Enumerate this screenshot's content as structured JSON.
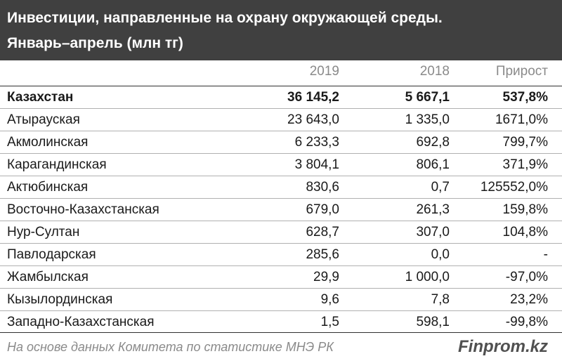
{
  "chart_data": {
    "type": "table",
    "title": "Инвестиции, направленные на охрану окружающей среды.",
    "subtitle": "Январь–апрель (млн тг)",
    "columns": [
      "",
      "2019",
      "2018",
      "Прирост"
    ],
    "rows": [
      {
        "name": "Казахстан",
        "v2019": "36 145,2",
        "v2018": "5 667,1",
        "growth": "537,8%"
      },
      {
        "name": "Атырауская",
        "v2019": "23 643,0",
        "v2018": "1 335,0",
        "growth": "1671,0%"
      },
      {
        "name": "Акмолинская",
        "v2019": "6 233,3",
        "v2018": "692,8",
        "growth": "799,7%"
      },
      {
        "name": "Карагандинская",
        "v2019": "3 804,1",
        "v2018": "806,1",
        "growth": "371,9%"
      },
      {
        "name": "Актюбинская",
        "v2019": "830,6",
        "v2018": "0,7",
        "growth": "125552,0%"
      },
      {
        "name": "Восточно-Казахстанская",
        "v2019": "679,0",
        "v2018": "261,3",
        "growth": "159,8%"
      },
      {
        "name": "Нур-Султан",
        "v2019": "628,7",
        "v2018": "307,0",
        "growth": "104,8%"
      },
      {
        "name": "Павлодарская",
        "v2019": "285,6",
        "v2018": "0,0",
        "growth": "-"
      },
      {
        "name": "Жамбылская",
        "v2019": "29,9",
        "v2018": "1 000,0",
        "growth": "-97,0%"
      },
      {
        "name": "Кызылординская",
        "v2019": "9,6",
        "v2018": "7,8",
        "growth": "23,2%"
      },
      {
        "name": "Западно-Казахстанская",
        "v2019": "1,5",
        "v2018": "598,1",
        "growth": "-99,8%"
      }
    ]
  },
  "footer": {
    "source": "На основе данных  Комитета по статистике МНЭ РК",
    "brand": "Finprom.kz"
  },
  "colors": {
    "header_bg": "#404040",
    "header_text": "#ffffff",
    "muted_text": "#8a8a8a"
  }
}
